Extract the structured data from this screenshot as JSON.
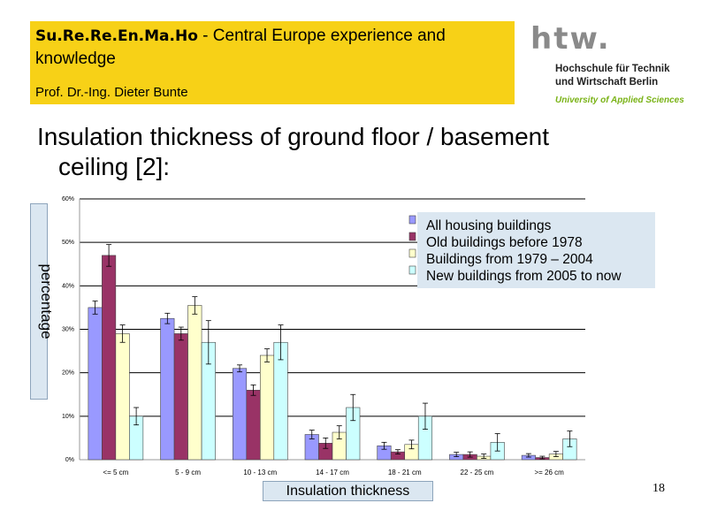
{
  "header": {
    "title_bold": "Su.Re.Re.En.Ma.Ho",
    "title_rest": " - Central Europe experience and knowledge",
    "author": "Prof. Dr.-Ing. Dieter Bunte"
  },
  "logo": {
    "mark": "htw.",
    "line1": "Hochschule für Technik",
    "line2": "und Wirtschaft Berlin",
    "line3": "University of Applied Sciences"
  },
  "slide": {
    "title_line1": "Insulation thickness of ground floor / basement",
    "title_line2": "ceiling [2]:",
    "page_number": "18"
  },
  "colors": {
    "header_bg": "#f7d117",
    "label_box_bg": "#dbe7f1",
    "logo_green": "#7ab317"
  },
  "chart_data": {
    "type": "bar",
    "title": "",
    "xlabel": "Insulation thickness",
    "ylabel": "percentage",
    "categories": [
      "<= 5 cm",
      "5 - 9 cm",
      "10 - 13 cm",
      "14 - 17 cm",
      "18 - 21 cm",
      "22 - 25 cm",
      ">= 26 cm"
    ],
    "y_ticks": [
      "0%",
      "10%",
      "20%",
      "30%",
      "40%",
      "50%",
      "60%"
    ],
    "ylim": [
      0,
      60
    ],
    "y_unit": "%",
    "grid": true,
    "legend_position": "top-right",
    "series": [
      {
        "name": "All housing buildings",
        "color": "#9999ff",
        "values": [
          35,
          32.5,
          21,
          5.8,
          3.2,
          1.2,
          1
        ],
        "errors": [
          1.5,
          1.2,
          0.8,
          1,
          0.8,
          0.5,
          0.4
        ]
      },
      {
        "name": "Old buildings before 1978",
        "color": "#993366",
        "values": [
          47,
          29,
          16,
          3.8,
          1.8,
          1.2,
          0.5
        ],
        "errors": [
          2.5,
          1.5,
          1.2,
          1.2,
          0.5,
          0.6,
          0.3
        ]
      },
      {
        "name": "Buildings from 1979 – 2004",
        "color": "#ffffcc",
        "values": [
          29,
          35.5,
          24,
          6.3,
          3.5,
          0.8,
          1.3
        ],
        "errors": [
          2,
          2,
          1.5,
          1.5,
          1,
          0.5,
          0.6
        ]
      },
      {
        "name": "New buildings from 2005 to now",
        "color": "#ccffff",
        "values": [
          10,
          27,
          27,
          12,
          10,
          4,
          4.8
        ],
        "errors": [
          2,
          5,
          4,
          3,
          3,
          2,
          1.8
        ]
      }
    ]
  }
}
